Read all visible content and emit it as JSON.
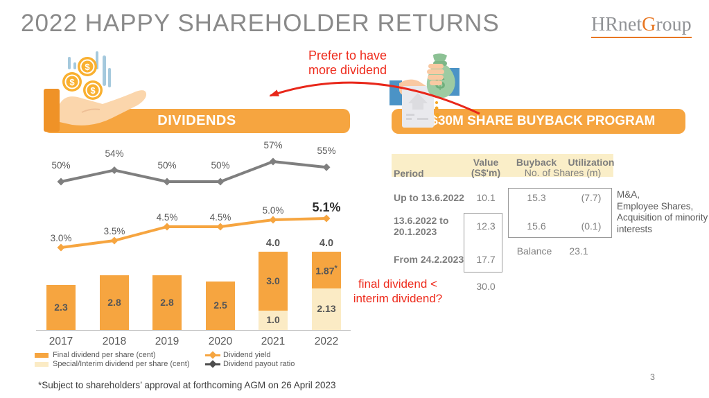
{
  "title": "2022 HAPPY SHAREHOLDER RETURNS",
  "logo": {
    "part1": "HRnet",
    "part2": "G",
    "part3": "roup"
  },
  "page_number": "3",
  "footnote": "*Subject to shareholders’ approval at forthcoming AGM on 26 April 2023",
  "banners": {
    "dividends": "DIVIDENDS",
    "buyback": "S$30M SHARE BUYBACK PROGRAM"
  },
  "annotations": {
    "prefer_line1": "Prefer to have",
    "prefer_line2": "more dividend",
    "question_line1": "final dividend <",
    "question_line2": "interim dividend?"
  },
  "colors": {
    "orange": "#f6a540",
    "cream": "#fbebc5",
    "gray_line": "#7f7f7f",
    "header_cream": "#faeec8",
    "red": "#ee2b1c",
    "logo_orange": "#e87722",
    "title_gray": "#8a8a8a",
    "dark_text": "#595959"
  },
  "chart_data": [
    {
      "type": "bar",
      "subtype": "stacked-bar-with-lines",
      "title": "DIVIDENDS",
      "categories": [
        "2017",
        "2018",
        "2019",
        "2020",
        "2021",
        "2022"
      ],
      "series": [
        {
          "name": "Final dividend per share (cent)",
          "type": "bar",
          "color": "#f6a540",
          "values": [
            2.3,
            2.8,
            2.8,
            2.5,
            3.0,
            1.87
          ]
        },
        {
          "name": "Special/Interim dividend per share (cent)",
          "type": "bar",
          "color": "#fbebc5",
          "values": [
            0,
            0,
            0,
            0,
            1.0,
            2.13
          ]
        },
        {
          "name": "Dividend yield",
          "type": "line",
          "color": "#f6a540",
          "values": [
            3.0,
            3.5,
            4.5,
            4.5,
            5.0,
            5.1
          ],
          "labels": [
            "3.0%",
            "3.5%",
            "4.5%",
            "4.5%",
            "5.0%",
            "5.1%"
          ]
        },
        {
          "name": "Dividend payout ratio",
          "type": "line",
          "color": "#7f7f7f",
          "values": [
            50,
            54,
            50,
            50,
            57,
            55
          ],
          "labels": [
            "50%",
            "54%",
            "50%",
            "50%",
            "57%",
            "55%"
          ]
        }
      ],
      "bar_value_labels": {
        "final": [
          "2.3",
          "2.8",
          "2.8",
          "2.5",
          "3.0",
          "1.87"
        ],
        "special": [
          "",
          "",
          "",
          "",
          "1.0",
          "2.13"
        ]
      },
      "asterisk": "*",
      "asterisk_index": 5,
      "totals_labels": {
        "2021": "4.0",
        "2022": "4.0"
      },
      "legend": [
        {
          "swatch": "bar",
          "color": "#f6a540",
          "label": "Final dividend per share (cent)"
        },
        {
          "swatch": "bar",
          "color": "#fbebc5",
          "label": "Special/Interim dividend per share (cent)"
        },
        {
          "swatch": "line",
          "color": "#f6a540",
          "label": "Dividend yield"
        },
        {
          "swatch": "line",
          "color": "#4d4d4d",
          "label": "Dividend payout ratio"
        }
      ],
      "grid": false,
      "legend_position": "bottom"
    },
    {
      "type": "table",
      "title": "S$30M SHARE BUYBACK PROGRAM",
      "header": {
        "period": "Period",
        "value_line1": "Value",
        "value_line2": "(S$'m)",
        "buyback": "Buyback",
        "utilization": "Utilization",
        "shares": "No. of Shares (m)"
      },
      "rows": [
        {
          "period_lines": [
            "Up to 13.6.2022"
          ],
          "value": "10.1",
          "buyback": "15.3",
          "utilization": "(7.7)"
        },
        {
          "period_lines": [
            "13.6.2022 to",
            "20.1.2023"
          ],
          "value": "12.3",
          "buyback": "15.6",
          "utilization": "(0.1)"
        },
        {
          "period_lines": [
            "From 24.2.2023"
          ],
          "value": "17.7",
          "buyback": "",
          "utilization": ""
        }
      ],
      "balance": {
        "label": "Balance",
        "value": "23.1"
      },
      "total_value": "30.0",
      "side_note_lines": [
        "M&A,",
        "Employee Shares,",
        "Acquisition of minority",
        "interests"
      ]
    }
  ]
}
